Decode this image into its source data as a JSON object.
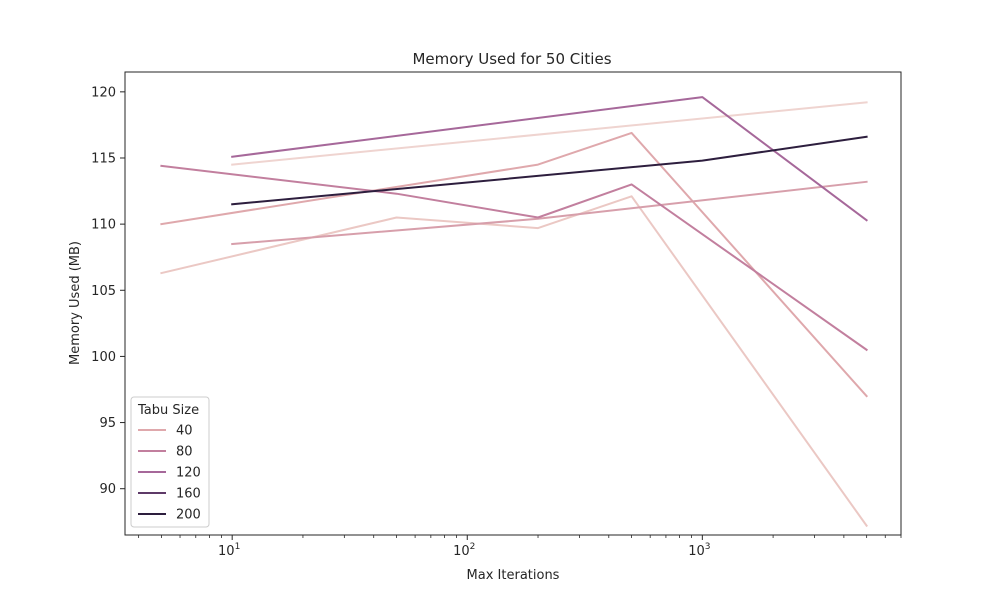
{
  "chart_data": {
    "type": "line",
    "title": "Memory Used for 50 Cities",
    "xlabel": "Max Iterations",
    "ylabel": "Memory Used (MB)",
    "xscale": "log",
    "xlim": [
      3.5,
      7000
    ],
    "ylim": [
      86.5,
      121.5
    ],
    "x_ticks": [
      10,
      100,
      1000
    ],
    "x_tick_labels": [
      {
        "base": "10",
        "exp": "1"
      },
      {
        "base": "10",
        "exp": "2"
      },
      {
        "base": "10",
        "exp": "3"
      }
    ],
    "y_ticks": [
      90,
      95,
      100,
      105,
      110,
      115,
      120
    ],
    "legend": {
      "title": "Tabu Size",
      "placement": "lower-left"
    },
    "grid": false,
    "series": [
      {
        "name": "",
        "color": "#ebc8c4",
        "points": [
          [
            5,
            106.3
          ],
          [
            50,
            110.5
          ],
          [
            200,
            109.7
          ],
          [
            500,
            112.1
          ],
          [
            5000,
            87.2
          ]
        ]
      },
      {
        "name": "",
        "color": "#efd4d0",
        "points": [
          [
            10,
            114.5
          ],
          [
            5000,
            119.2
          ]
        ]
      },
      {
        "name": "40",
        "color": "#dfa8ac",
        "points": [
          [
            5,
            110.0
          ],
          [
            200,
            114.5
          ],
          [
            500,
            116.9
          ],
          [
            5000,
            97.0
          ]
        ]
      },
      {
        "name": "",
        "color": "#d79fab",
        "points": [
          [
            10,
            108.5
          ],
          [
            200,
            110.4
          ],
          [
            5000,
            113.2
          ]
        ]
      },
      {
        "name": "80",
        "color": "#c27f9e",
        "points": [
          [
            5,
            114.4
          ],
          [
            50,
            112.3
          ],
          [
            200,
            110.5
          ],
          [
            500,
            113.0
          ],
          [
            5000,
            100.5
          ]
        ]
      },
      {
        "name": "120",
        "color": "#a6689a",
        "points": [
          [
            10,
            115.1
          ],
          [
            1000,
            119.6
          ],
          [
            5000,
            110.3
          ]
        ]
      },
      {
        "name": "160",
        "color": "#5e3a68",
        "points": []
      },
      {
        "name": "200",
        "color": "#2d1e3e",
        "points": [
          [
            10,
            111.5
          ],
          [
            1000,
            114.8
          ],
          [
            5000,
            116.6
          ]
        ]
      }
    ]
  }
}
